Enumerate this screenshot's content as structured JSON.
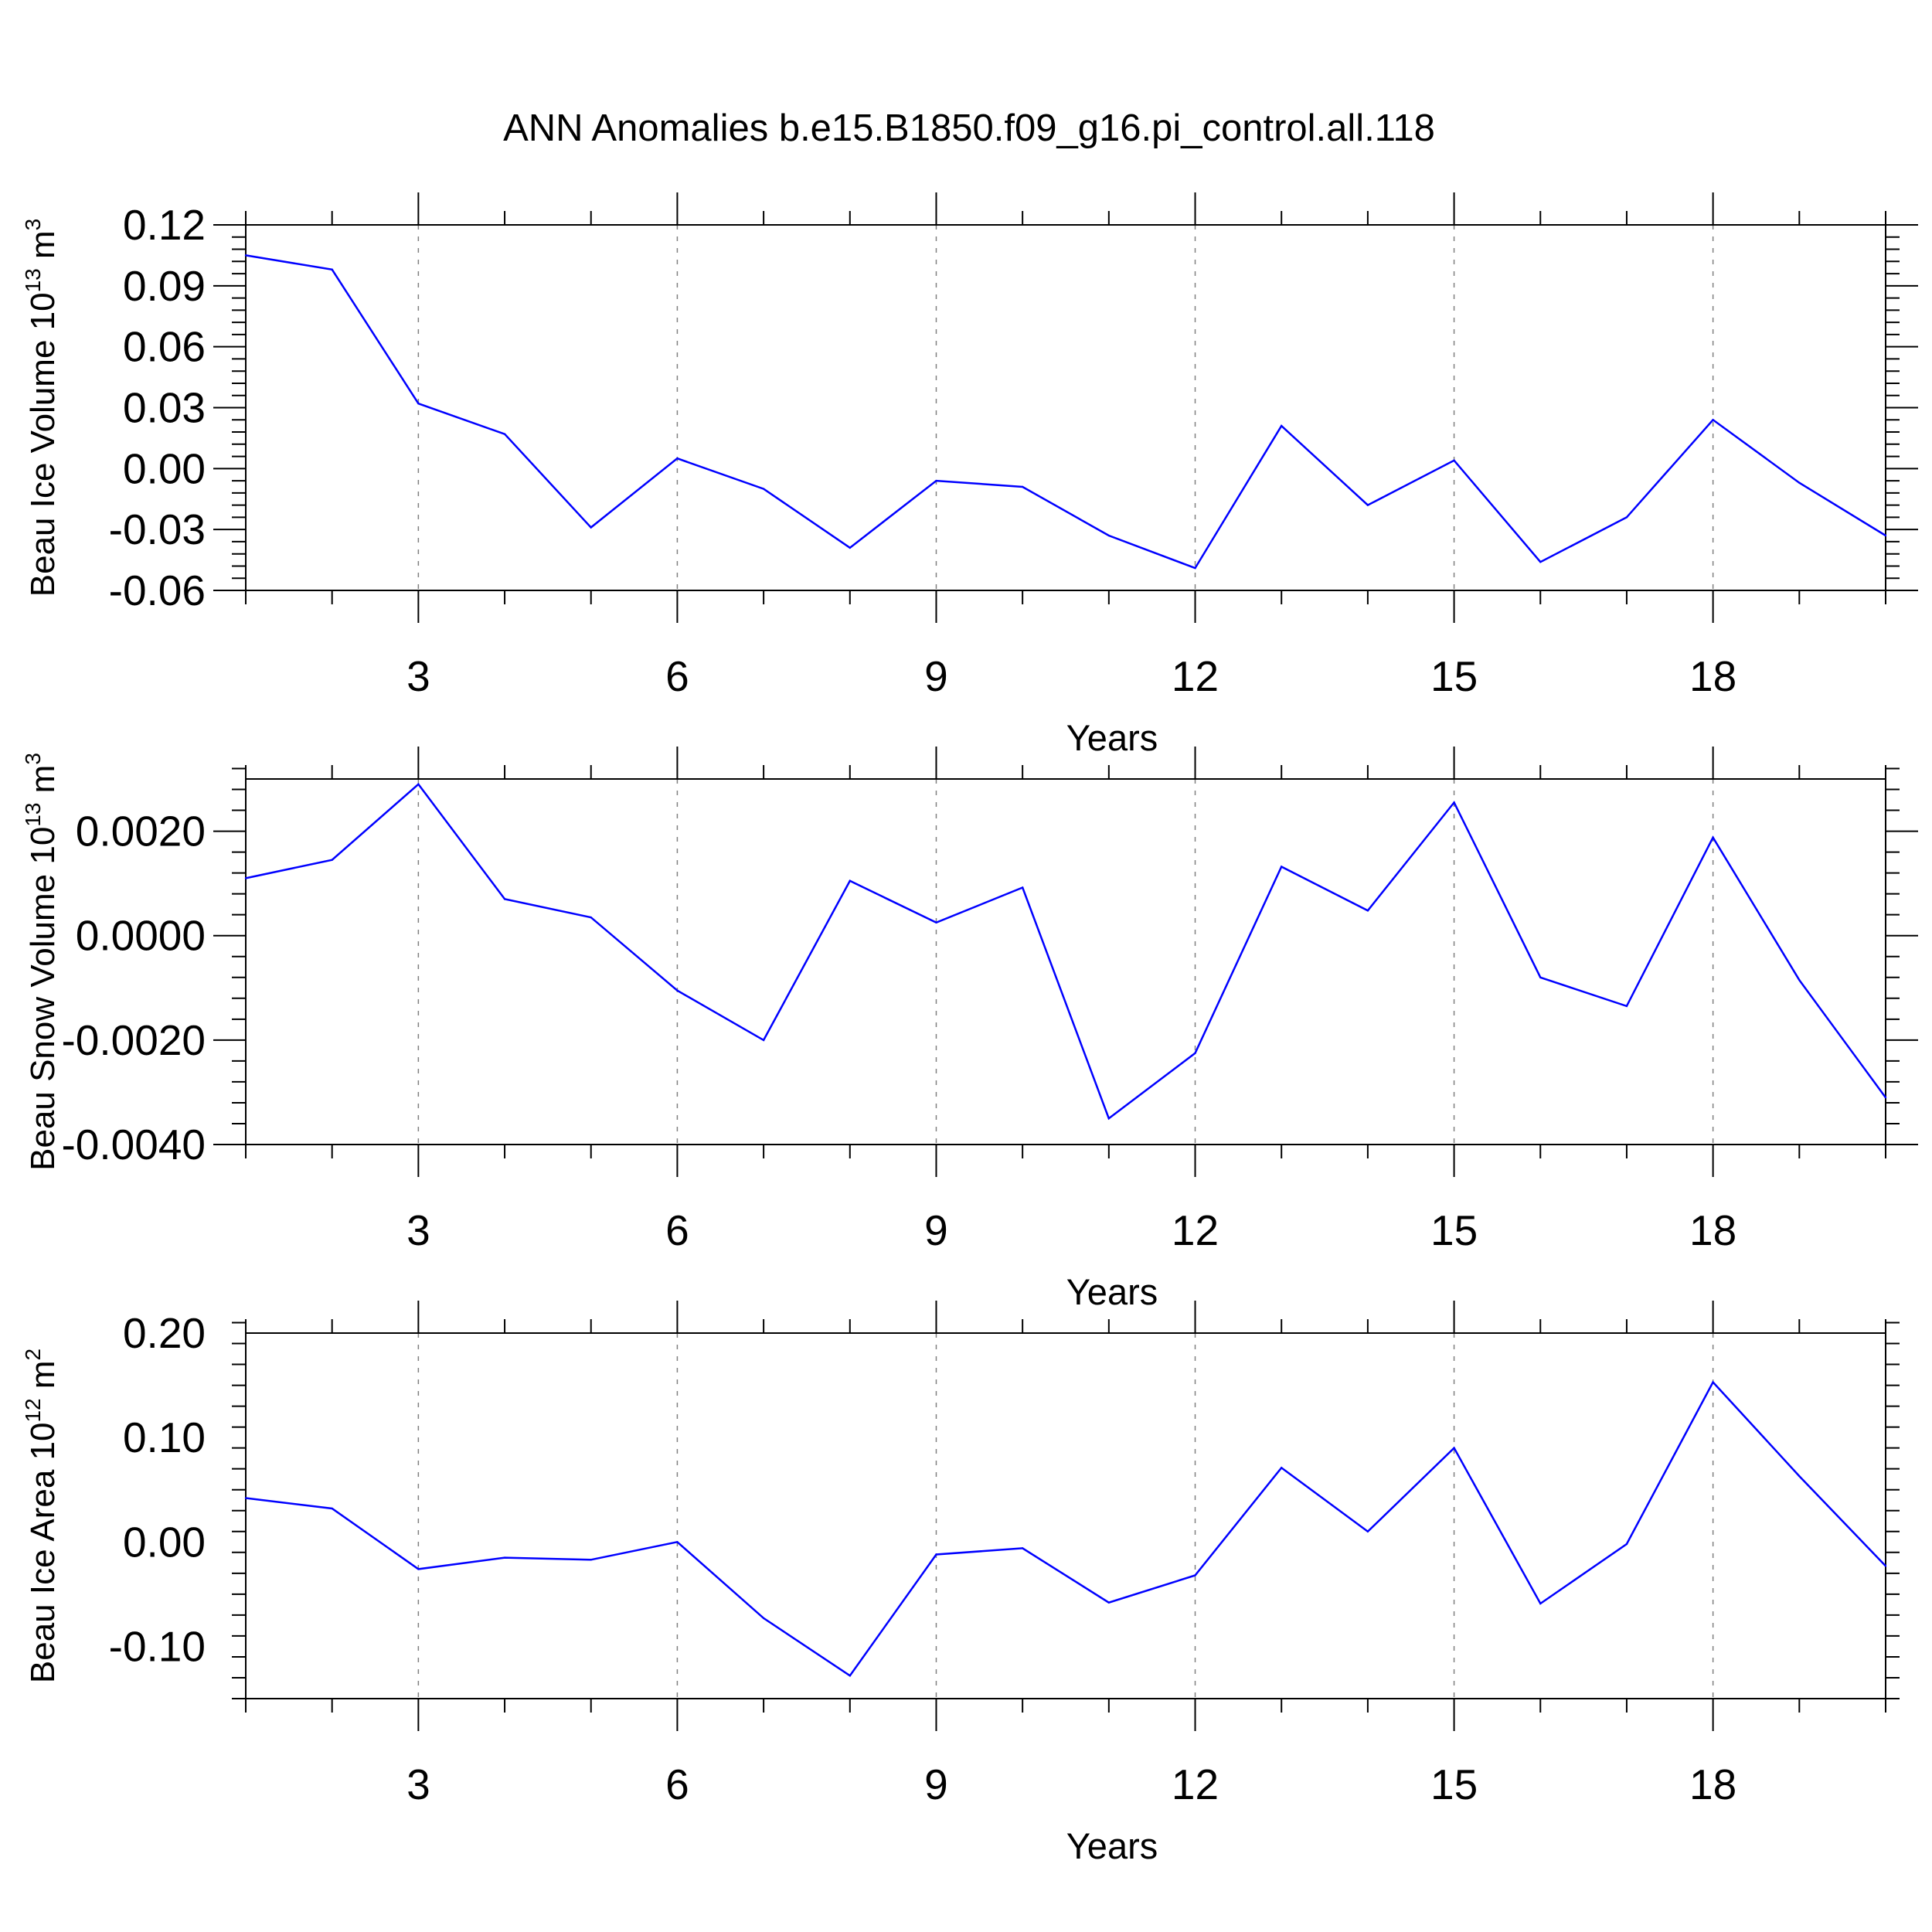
{
  "title": "ANN Anomalies b.e15.B1850.f09_g16.pi_control.all.118",
  "colors": {
    "line": "#0000ff",
    "axis": "#000000",
    "grid": "#808080",
    "background": "#ffffff"
  },
  "chart_data": [
    {
      "type": "line",
      "xlabel": "Years",
      "ylabel": {
        "text": "Beau Ice Volume 10",
        "exp": "13",
        "unit": " m",
        "unit_exp": "3"
      },
      "xlim": [
        1,
        20
      ],
      "ylim": [
        -0.06,
        0.12
      ],
      "xticks": [
        3,
        6,
        9,
        12,
        15,
        18
      ],
      "yticks": [
        -0.06,
        -0.03,
        0.0,
        0.03,
        0.06,
        0.09,
        0.12
      ],
      "ytick_labels": [
        "-0.06",
        "-0.03",
        "0.00",
        "0.03",
        "0.06",
        "0.09",
        "0.12"
      ],
      "grid": "vertical dashed at major x ticks",
      "x": [
        1,
        2,
        3,
        4,
        5,
        6,
        7,
        8,
        9,
        10,
        11,
        12,
        13,
        14,
        15,
        16,
        17,
        18,
        19,
        20
      ],
      "values": [
        0.105,
        0.098,
        0.032,
        0.017,
        -0.029,
        0.005,
        -0.01,
        -0.039,
        -0.006,
        -0.009,
        -0.033,
        -0.049,
        0.021,
        -0.018,
        0.004,
        -0.046,
        -0.024,
        0.024,
        -0.007,
        -0.033
      ]
    },
    {
      "type": "line",
      "xlabel": "Years",
      "ylabel": {
        "text": "Beau Snow Volume 10",
        "exp": "13",
        "unit": " m",
        "unit_exp": "3"
      },
      "xlim": [
        1,
        20
      ],
      "ylim": [
        -0.004,
        0.003
      ],
      "xticks": [
        3,
        6,
        9,
        12,
        15,
        18
      ],
      "yticks": [
        -0.004,
        -0.002,
        0.0,
        0.002
      ],
      "ytick_labels": [
        "-0.0040",
        "-0.0020",
        "0.0000",
        "0.0020"
      ],
      "grid": "vertical dashed at major x ticks",
      "x": [
        1,
        2,
        3,
        4,
        5,
        6,
        7,
        8,
        9,
        10,
        11,
        12,
        13,
        14,
        15,
        16,
        17,
        18,
        19,
        20
      ],
      "values": [
        0.0011,
        0.00145,
        0.0029,
        0.0007,
        0.00035,
        -0.00105,
        -0.002,
        0.00105,
        0.00025,
        0.00092,
        -0.0035,
        -0.00225,
        0.00132,
        0.00048,
        0.00255,
        -0.0008,
        -0.00135,
        0.00188,
        -0.00085,
        -0.0031
      ]
    },
    {
      "type": "line",
      "xlabel": "Years",
      "ylabel": {
        "text": "Beau Ice Area 10",
        "exp": "12",
        "unit": " m",
        "unit_exp": "2"
      },
      "xlim": [
        1,
        20
      ],
      "ylim": [
        -0.15,
        0.2
      ],
      "xticks": [
        3,
        6,
        9,
        12,
        15,
        18
      ],
      "yticks": [
        -0.1,
        0.0,
        0.1,
        0.2
      ],
      "ytick_labels": [
        "-0.10",
        "0.00",
        "0.10",
        "0.20"
      ],
      "grid": "vertical dashed at major x ticks",
      "x": [
        1,
        2,
        3,
        4,
        5,
        6,
        7,
        8,
        9,
        10,
        11,
        12,
        13,
        14,
        15,
        16,
        17,
        18,
        19,
        20
      ],
      "values": [
        0.042,
        0.032,
        -0.026,
        -0.015,
        -0.017,
        0.0,
        -0.073,
        -0.128,
        -0.012,
        -0.006,
        -0.058,
        -0.032,
        0.071,
        0.01,
        0.09,
        -0.059,
        -0.002,
        0.153,
        0.063,
        -0.023
      ]
    }
  ]
}
